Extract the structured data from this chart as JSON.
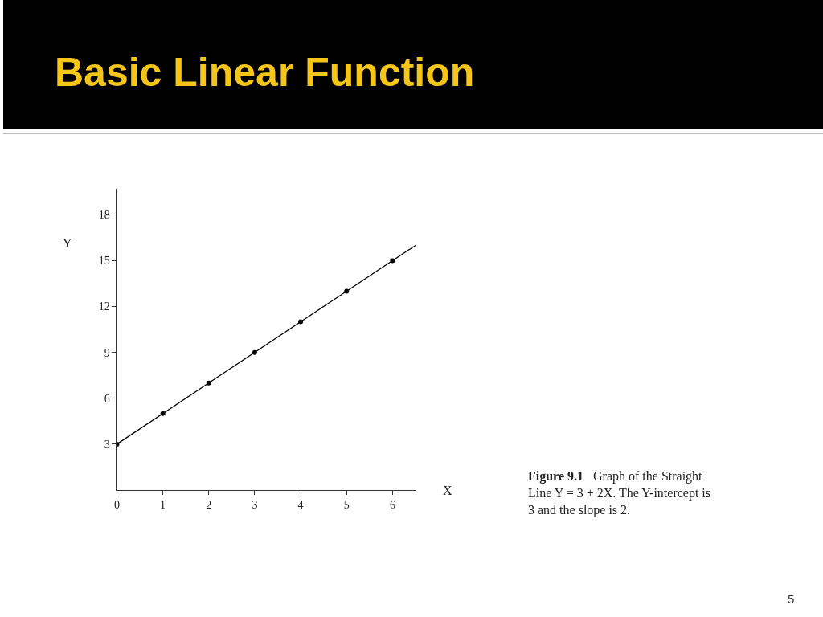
{
  "chart_data": {
    "type": "scatter",
    "title": "Basic Linear Function",
    "xlabel": "X",
    "ylabel": "Y",
    "x": [
      0,
      1,
      2,
      3,
      4,
      5,
      6
    ],
    "series": [
      {
        "color": "#000000",
        "marker": "circle",
        "values": [
          3,
          5,
          7,
          9,
          11,
          13,
          15
        ]
      },
      {
        "type": "line",
        "color": "#000000",
        "marker": "none",
        "line_style": "solid",
        "x": [
          0,
          6.5
        ],
        "values": [
          3,
          16
        ]
      }
    ],
    "xlim": [
      0,
      6.5
    ],
    "xticks": [
      0,
      1,
      2,
      3,
      4,
      5,
      6
    ],
    "ylim": [
      0,
      19.7
    ],
    "yticks": [
      3,
      6,
      9,
      12,
      15,
      18
    ],
    "annotations": [
      "Figure 9.1",
      "Graph of the Straight Line Y = 3 + 2X. The Y-intercept is 3 and the slope is 2.",
      "5"
    ]
  }
}
